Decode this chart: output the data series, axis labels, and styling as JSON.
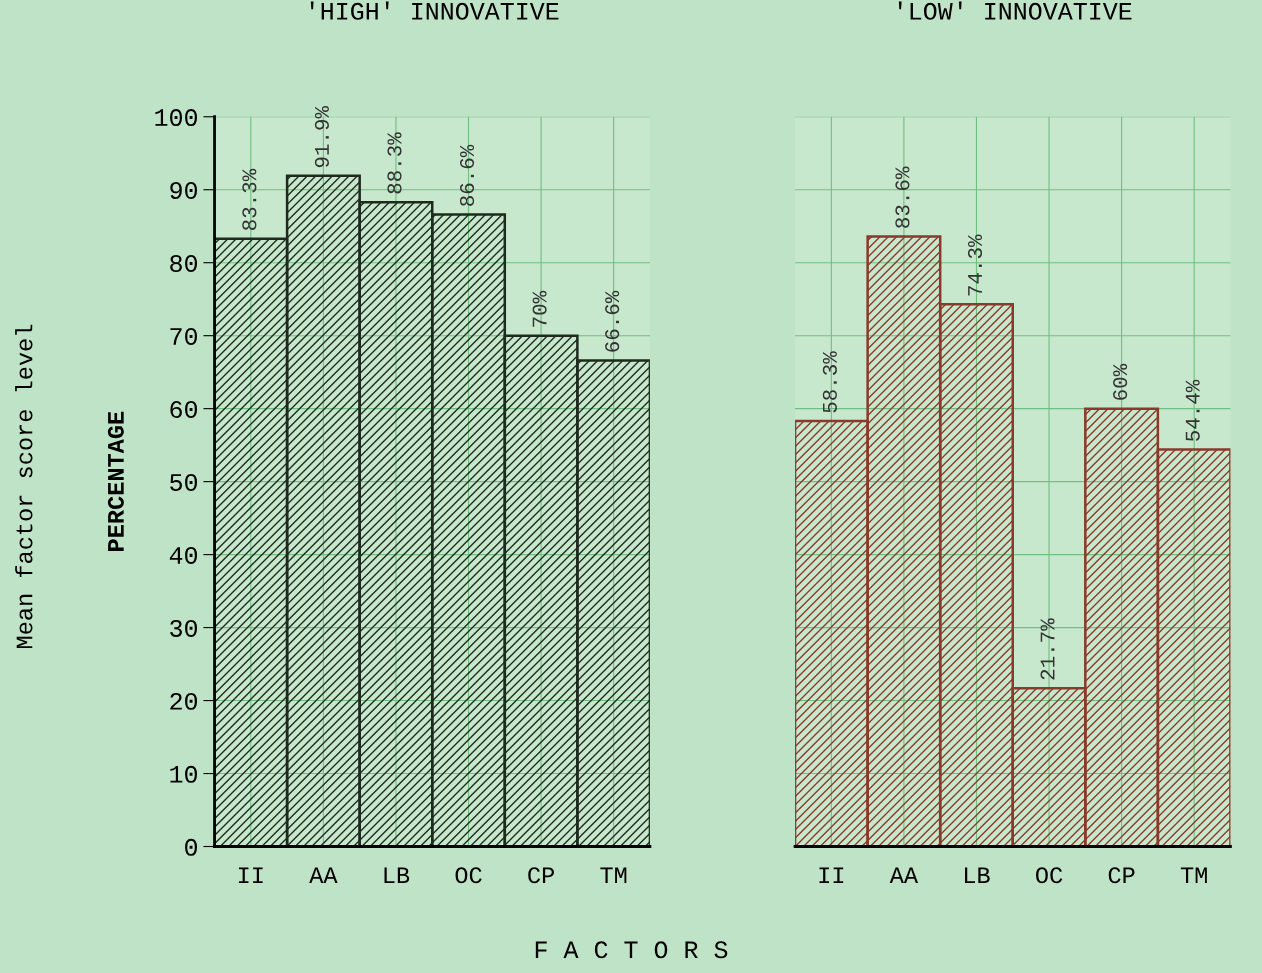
{
  "chart_data": [
    {
      "type": "bar",
      "title": "'HIGH' INNOVATIVE",
      "ylabel": "PERCENTAGE",
      "xlabel": "F A C T O R S",
      "annotations": [
        "Mean factor score level"
      ],
      "categories": [
        "II",
        "AA",
        "LB",
        "OC",
        "CP",
        "TM"
      ],
      "values": [
        83.3,
        91.9,
        88.3,
        86.6,
        70,
        66.6
      ],
      "color": "#1f2a1f",
      "value_labels": [
        "83.3%",
        "91.9%",
        "88.3%",
        "86.6%",
        "70%",
        "66.6%"
      ],
      "ylim": [
        0,
        100
      ],
      "yticks": [
        0,
        10,
        20,
        30,
        40,
        50,
        60,
        70,
        80,
        90,
        100
      ],
      "grid": true,
      "legend": false
    },
    {
      "type": "bar",
      "title": "'LOW' INNOVATIVE",
      "tick_labels": "x",
      "categories": [
        "II",
        "AA",
        "LB",
        "OC",
        "CP",
        "TM"
      ],
      "values": [
        58.3,
        83.6,
        74.3,
        21.7,
        60,
        54.4
      ],
      "color": "#8a3a2a",
      "value_labels": [
        "58.3%",
        "83.6%",
        "74.3%",
        "21.7%",
        "60%",
        "54.4%"
      ],
      "ylim": [
        0,
        100
      ],
      "yticks": [
        0,
        10,
        20,
        30,
        40,
        50,
        60,
        70,
        80,
        90,
        100
      ],
      "grid": true,
      "legend": false
    }
  ]
}
